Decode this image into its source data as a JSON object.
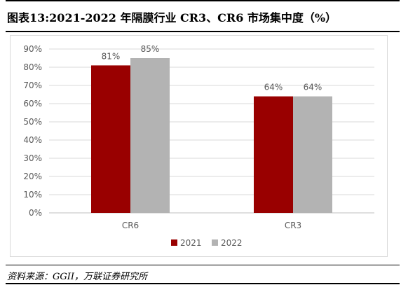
{
  "title": "图表13:2021-2022 年隔膜行业 CR3、CR6 市场集中度（%）",
  "source": "资料来源：GGII，万联证券研究所",
  "chart_data": {
    "type": "bar",
    "categories": [
      "CR6",
      "CR3"
    ],
    "series": [
      {
        "name": "2021",
        "values": [
          81,
          64
        ],
        "color": "#990000"
      },
      {
        "name": "2022",
        "values": [
          85,
          64
        ],
        "color": "#b3b3b3"
      }
    ],
    "data_labels": [
      [
        "81%",
        "64%"
      ],
      [
        "85%",
        "64%"
      ]
    ],
    "y_ticks": [
      "0%",
      "10%",
      "20%",
      "30%",
      "40%",
      "50%",
      "60%",
      "70%",
      "80%",
      "90%"
    ],
    "ylim": [
      0,
      90
    ],
    "grid": true,
    "legend": "bottom-center"
  }
}
